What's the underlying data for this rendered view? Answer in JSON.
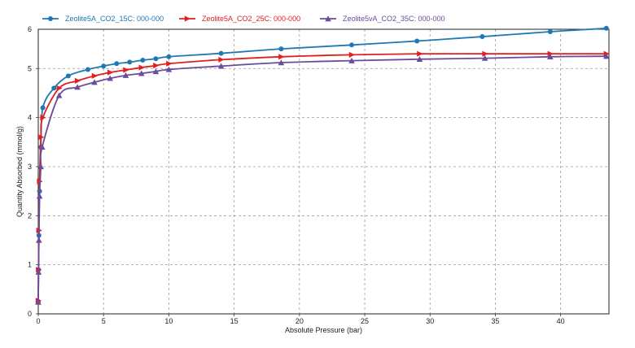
{
  "chart_data": {
    "type": "line",
    "title": "",
    "xlabel": "Absolute Pressure (bar)",
    "ylabel": "Quantity Absorbed (mmol/g)",
    "xlim": [
      0,
      43.7
    ],
    "ylim": [
      0,
      5.8
    ],
    "x_ticks": [
      0,
      5,
      10,
      15,
      20,
      25,
      30,
      35,
      40
    ],
    "y_ticks": [
      0,
      1,
      2,
      3,
      4,
      5
    ],
    "y_tick_labels": [
      "0",
      "1",
      "2",
      "3",
      "4",
      "5"
    ],
    "y_top_label": "6",
    "grid": true,
    "legend_position": "top",
    "series": [
      {
        "name": "Zeolite5A_CO2_15C: 000-000",
        "color": "#1f77b4",
        "marker": "circle",
        "points": [
          [
            0,
            0.25
          ],
          [
            0.02,
            0.9
          ],
          [
            0.05,
            1.6
          ],
          [
            0.1,
            2.5
          ],
          [
            0.2,
            3.4
          ],
          [
            0.35,
            4.2
          ],
          [
            1.2,
            4.6
          ],
          [
            2.3,
            4.85
          ],
          [
            3.8,
            4.98
          ],
          [
            5.0,
            5.05
          ],
          [
            6.0,
            5.1
          ],
          [
            7.0,
            5.13
          ],
          [
            8.0,
            5.17
          ],
          [
            9.0,
            5.2
          ],
          [
            10.0,
            5.24
          ],
          [
            14.0,
            5.31
          ],
          [
            18.6,
            5.4
          ],
          [
            24.0,
            5.48
          ],
          [
            29.0,
            5.56
          ],
          [
            34.0,
            5.65
          ],
          [
            39.2,
            5.75
          ],
          [
            43.5,
            5.82
          ]
        ]
      },
      {
        "name": "Zeolite5A_CO2_25C: 000-000",
        "color": "#e02020",
        "marker": "triangle-right",
        "points": [
          [
            0,
            0.27
          ],
          [
            0.02,
            0.9
          ],
          [
            0.05,
            1.7
          ],
          [
            0.1,
            2.7
          ],
          [
            0.2,
            3.6
          ],
          [
            0.35,
            4.0
          ],
          [
            1.6,
            4.6
          ],
          [
            3.0,
            4.75
          ],
          [
            4.3,
            4.85
          ],
          [
            5.5,
            4.92
          ],
          [
            6.7,
            4.97
          ],
          [
            7.9,
            5.02
          ],
          [
            9.0,
            5.06
          ],
          [
            10.0,
            5.1
          ],
          [
            14.0,
            5.18
          ],
          [
            18.6,
            5.24
          ],
          [
            24.0,
            5.28
          ],
          [
            29.2,
            5.3
          ],
          [
            34.2,
            5.3
          ],
          [
            39.2,
            5.3
          ],
          [
            43.5,
            5.3
          ]
        ]
      },
      {
        "name": "Zeolite5vA_CO2_35C: 000-000",
        "color": "#6a4c9c",
        "marker": "triangle-up",
        "points": [
          [
            0,
            0.24
          ],
          [
            0.02,
            0.85
          ],
          [
            0.05,
            1.5
          ],
          [
            0.1,
            2.4
          ],
          [
            0.2,
            3.0
          ],
          [
            0.3,
            3.4
          ],
          [
            1.6,
            4.45
          ],
          [
            3.0,
            4.62
          ],
          [
            4.3,
            4.72
          ],
          [
            5.5,
            4.8
          ],
          [
            6.7,
            4.86
          ],
          [
            7.9,
            4.9
          ],
          [
            9.0,
            4.94
          ],
          [
            10.0,
            4.98
          ],
          [
            14.0,
            5.05
          ],
          [
            18.6,
            5.12
          ],
          [
            24.0,
            5.16
          ],
          [
            29.2,
            5.19
          ],
          [
            34.2,
            5.21
          ],
          [
            39.2,
            5.24
          ],
          [
            43.5,
            5.25
          ]
        ]
      }
    ]
  }
}
